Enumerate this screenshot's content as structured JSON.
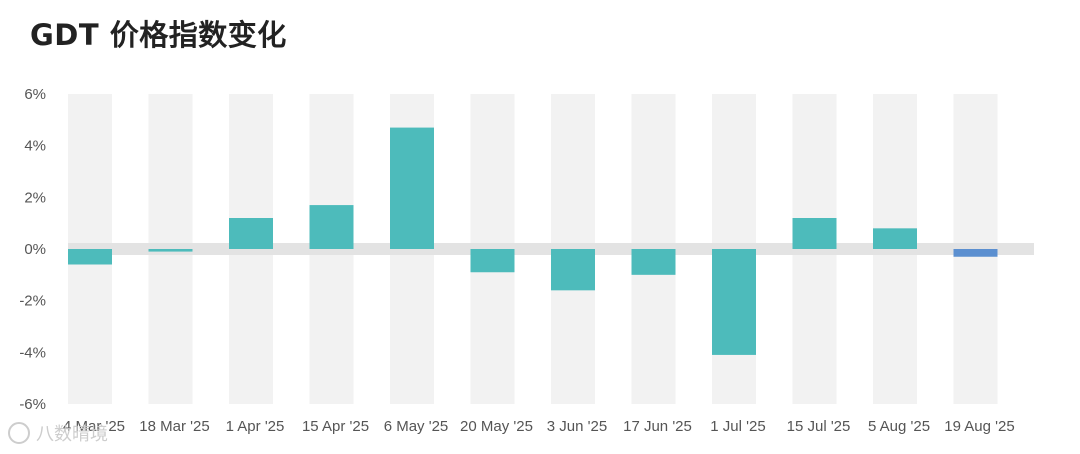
{
  "chart_data": {
    "type": "bar",
    "title": "GDT 价格指数变化",
    "xlabel": "",
    "ylabel": "",
    "categories": [
      "4 Mar '25",
      "18 Mar '25",
      "1 Apr '25",
      "15 Apr '25",
      "6 May '25",
      "20 May '25",
      "3 Jun '25",
      "17 Jun '25",
      "1 Jul '25",
      "15 Jul '25",
      "5 Aug '25",
      "19 Aug '25"
    ],
    "values": [
      -0.6,
      -0.1,
      1.2,
      1.7,
      4.7,
      -0.9,
      -1.6,
      -1.0,
      -4.1,
      1.2,
      0.8,
      -0.3
    ],
    "ylim": [
      -6,
      6
    ],
    "yticks": [
      6,
      4,
      2,
      0,
      -2,
      -4,
      -6
    ],
    "ytick_labels": [
      "6%",
      "4%",
      "2%",
      "0%",
      "-2%",
      "-4%",
      "-6%"
    ],
    "colors": {
      "bar": "#4dbbbb",
      "latest": "#5b8fd0",
      "band": "#f2f2f2",
      "zero_band": "#e3e3e3"
    },
    "grid": false,
    "legend": "none"
  },
  "watermark": {
    "text": "八数晴境"
  }
}
